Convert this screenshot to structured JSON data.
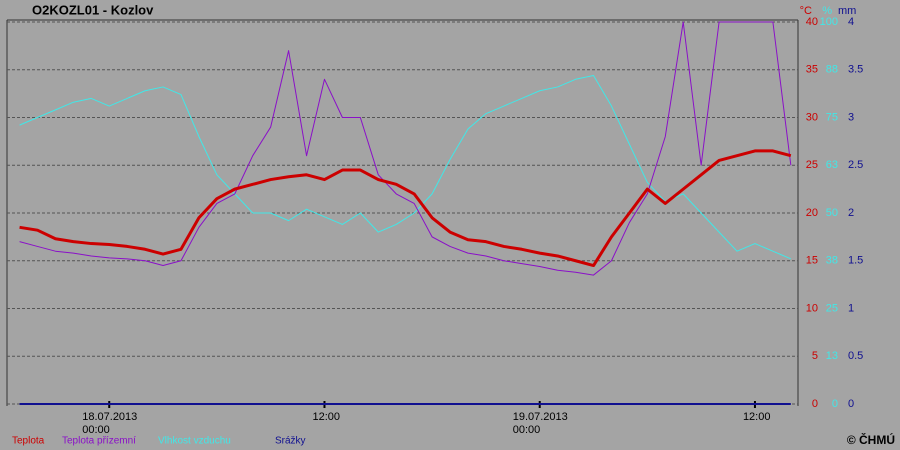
{
  "chart_data": {
    "type": "line",
    "title": "O2KOZL01 - Kozlov",
    "footer": "© ČHMÚ",
    "units": {
      "y": "°C",
      "y2": "%",
      "y3": "mm"
    },
    "x": [
      -5,
      -4,
      -3,
      -2,
      -1,
      0,
      1,
      2,
      3,
      4,
      5,
      6,
      7,
      8,
      9,
      10,
      11,
      12,
      13,
      14,
      15,
      16,
      17,
      18,
      19,
      20,
      21,
      22,
      23,
      24,
      25,
      26,
      27,
      28,
      29,
      30,
      31,
      32,
      33,
      34,
      35,
      36,
      37,
      38
    ],
    "xlim": [
      -5.7,
      38.4
    ],
    "xticks": [
      {
        "value": 0,
        "date": "18.07.2013",
        "label": "00:00"
      },
      {
        "value": 12,
        "label": "12:00"
      },
      {
        "value": 24,
        "date": "19.07.2013",
        "label": "00:00"
      },
      {
        "value": 36,
        "label": "12:00"
      }
    ],
    "ylim": [
      0,
      40
    ],
    "yticks": [
      0,
      5,
      10,
      15,
      20,
      25,
      30,
      35,
      40
    ],
    "y2lim": [
      0,
      100
    ],
    "y2ticks": [
      0,
      {
        "value": 12.5,
        "label": "13"
      },
      25,
      {
        "value": 37.5,
        "label": "38"
      },
      50,
      {
        "value": 62.5,
        "label": "63"
      },
      75,
      {
        "value": 87.5,
        "label": "88"
      },
      100
    ],
    "y3lim": [
      0,
      4
    ],
    "y3ticks": [
      0,
      0.5,
      1,
      1.5,
      2,
      2.5,
      3,
      3.5,
      4
    ],
    "grid": true,
    "series": [
      {
        "name": "Teplota",
        "color": "#cc0000",
        "width": 3,
        "values": [
          18.5,
          18.2,
          17.3,
          17,
          16.8,
          16.7,
          16.5,
          16.2,
          15.7,
          16.2,
          19.5,
          21.5,
          22.5,
          23,
          23.5,
          23.8,
          24,
          23.5,
          24.5,
          24.5,
          23.5,
          23,
          22,
          19.5,
          18,
          17.2,
          17,
          16.5,
          16.2,
          15.8,
          15.5,
          15,
          14.5,
          17.5,
          20,
          22.5,
          21,
          22.5,
          24,
          25.5,
          26,
          26.5,
          26.5,
          26
        ]
      },
      {
        "name": "Teplota přízemní",
        "color": "#8a10c8",
        "width": 1,
        "values": [
          17,
          16.5,
          16,
          15.8,
          15.5,
          15.3,
          15.2,
          15,
          14.5,
          15,
          18.5,
          21,
          22,
          26,
          29,
          37,
          26,
          34,
          30,
          30,
          24,
          22,
          21,
          17.5,
          16.5,
          15.8,
          15.5,
          15,
          14.7,
          14.4,
          14,
          13.8,
          13.5,
          15,
          19,
          22,
          28,
          40,
          25,
          40,
          40,
          40,
          40,
          25
        ]
      },
      {
        "name": "Vlhkost vzduchu",
        "color": "#40e8e8",
        "width": 1,
        "axis": "y2",
        "values": [
          73,
          75,
          77,
          79,
          80,
          78,
          80,
          82,
          83,
          81,
          70,
          60,
          55,
          50,
          50,
          48,
          51,
          49,
          47,
          50,
          45,
          47,
          50,
          55,
          64,
          72,
          76,
          78,
          80,
          82,
          83,
          85,
          86,
          78,
          68,
          58,
          53,
          55,
          50,
          45,
          40,
          42,
          40,
          38
        ]
      },
      {
        "name": "Srážky",
        "color": "#101090",
        "width": 2,
        "axis": "y3",
        "values": [
          0,
          0,
          0,
          0,
          0,
          0,
          0,
          0,
          0,
          0,
          0,
          0,
          0,
          0,
          0,
          0,
          0,
          0,
          0,
          0,
          0,
          0,
          0,
          0,
          0,
          0,
          0,
          0,
          0,
          0,
          0,
          0,
          0,
          0,
          0,
          0,
          0,
          0,
          0,
          0,
          0,
          0,
          0,
          0
        ]
      }
    ]
  }
}
